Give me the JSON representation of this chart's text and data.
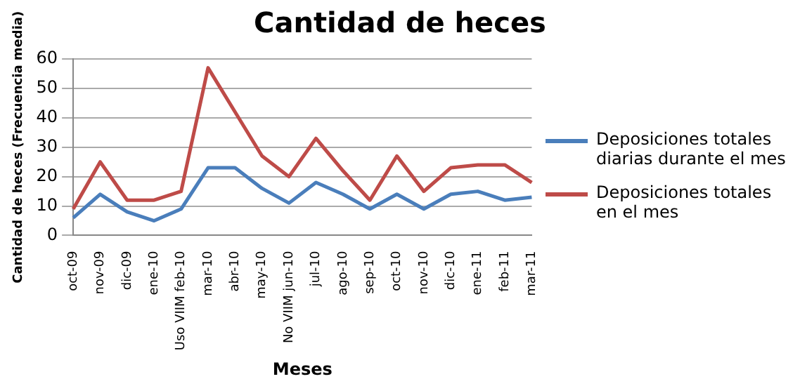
{
  "chart_data": {
    "type": "line",
    "title": "Cantidad de heces",
    "xlabel": "Meses",
    "ylabel": "Cantidad de heces (Frecuencia media)",
    "categories": [
      "oct-09",
      "nov-09",
      "dic-09",
      "ene-10",
      "Uso VIIM feb-10",
      "mar-10",
      "abr-10",
      "may-10",
      "No VIIM jun-10",
      "jul-10",
      "ago-10",
      "sep-10",
      "oct-10",
      "nov-10",
      "dic-10",
      "ene-11",
      "feb-11",
      "mar-11"
    ],
    "series": [
      {
        "name": "Deposiciones totales diarias durante el mes",
        "color": "#4a7ebb",
        "values": [
          6,
          14,
          8,
          5,
          9,
          23,
          23,
          16,
          11,
          18,
          14,
          9,
          14,
          9,
          14,
          15,
          12,
          13
        ]
      },
      {
        "name": "Deposiciones totales en el mes",
        "color": "#be4b48",
        "values": [
          9,
          25,
          12,
          12,
          15,
          57,
          42,
          27,
          20,
          33,
          22,
          12,
          27,
          15,
          23,
          24,
          24,
          18
        ]
      }
    ],
    "ylim": [
      0,
      60
    ],
    "yticks": [
      0,
      10,
      20,
      30,
      40,
      50,
      60
    ],
    "grid": "y",
    "legend": "right",
    "marker": "none",
    "line_style": "solid"
  }
}
